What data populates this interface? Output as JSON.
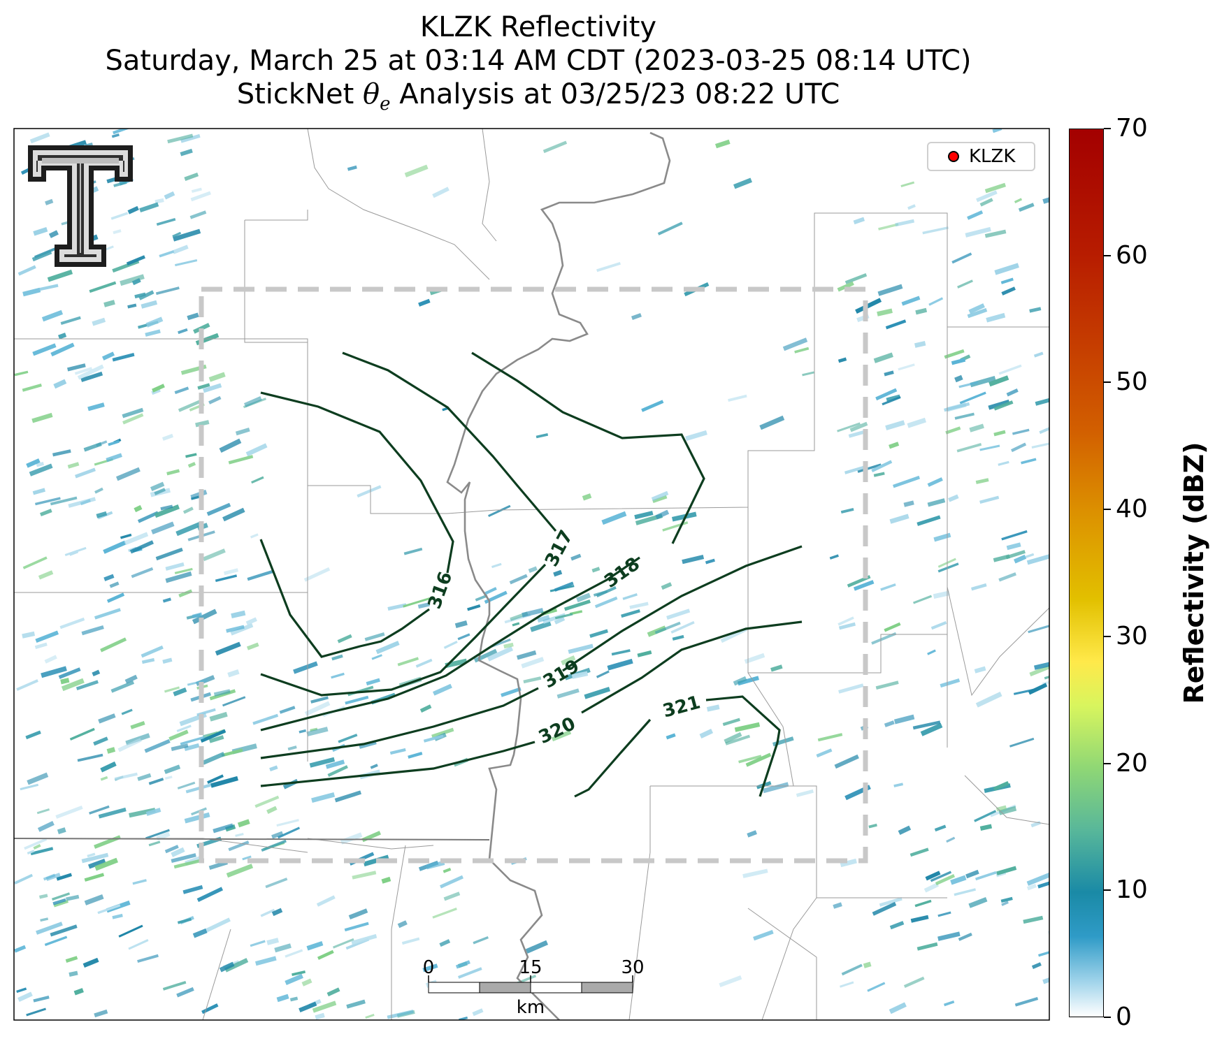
{
  "header": {
    "title": "KLZK Reflectivity",
    "subtitle": "Saturday, March 25 at 03:14 AM CDT (2023-03-25 08:14 UTC)",
    "analysis_prefix": "StickNet ",
    "analysis_symbol": "θ",
    "analysis_sub": "e",
    "analysis_suffix": " Analysis at 03/25/23 08:22 UTC"
  },
  "legend": {
    "label": "KLZK",
    "marker_color": "#ff0000"
  },
  "contours": {
    "color": "#0d3d1f",
    "labels": [
      "316",
      "317",
      "318",
      "319",
      "320",
      "321"
    ]
  },
  "colorbar": {
    "title": "Reflectivity (dBZ)",
    "ticks": [
      "70",
      "60",
      "50",
      "40",
      "30",
      "20",
      "10",
      "0"
    ],
    "min": 0,
    "max": 70
  },
  "scalebar": {
    "ticks": [
      "0",
      "15",
      "30"
    ],
    "unit": "km"
  },
  "colors": {
    "contour": "#0d3d1f",
    "analysis_box": "#c8c8c8",
    "river": "#8a8a8a",
    "county_lines": "#9a9a9a",
    "echo_low": "#2a8fb5",
    "echo_mid": "#5cb8a0"
  },
  "logo": {
    "icon": "texas-tech-double-t-logo"
  }
}
